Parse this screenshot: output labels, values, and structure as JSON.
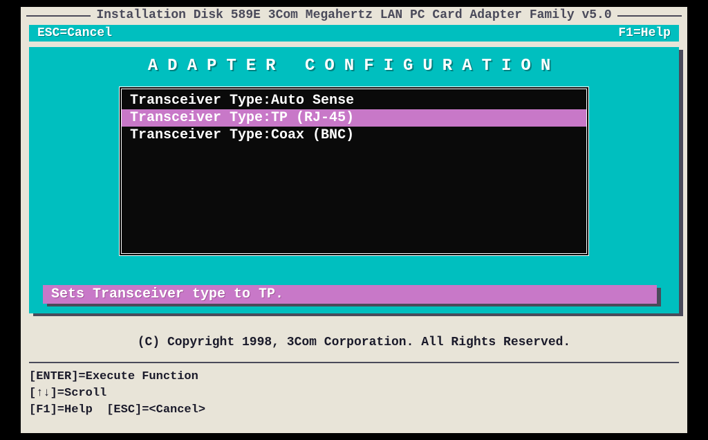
{
  "colors": {
    "background": "#e8e4d8",
    "teal": "#00bfbf",
    "teal_shadow": "#008080",
    "pink": "#c878c8",
    "dark": "#0a0a0a",
    "text_dark": "#1a1a2a",
    "white": "#ffffff",
    "frame_shadow": "#4a4a5a"
  },
  "title": "Installation Disk 589E 3Com Megahertz LAN PC Card Adapter Family v5.0",
  "topHints": {
    "left": "ESC=Cancel",
    "right": "F1=Help"
  },
  "panel": {
    "title": "ADAPTER  CONFIGURATION",
    "options": [
      {
        "label": "Transceiver Type:",
        "value": "Auto Sense",
        "selected": false
      },
      {
        "label": "Transceiver Type:",
        "value": "TP (RJ-45)",
        "selected": true
      },
      {
        "label": "Transceiver Type:",
        "value": "Coax (BNC)",
        "selected": false
      }
    ],
    "statusText": "Sets Transceiver type to TP."
  },
  "copyright": "(C) Copyright 1998, 3Com Corporation.  All Rights Reserved.",
  "bottomHelp": {
    "line1": "[ENTER]=Execute Function",
    "line2": "[↑↓]=Scroll",
    "line3": "[F1]=Help  [ESC]=<Cancel>"
  }
}
